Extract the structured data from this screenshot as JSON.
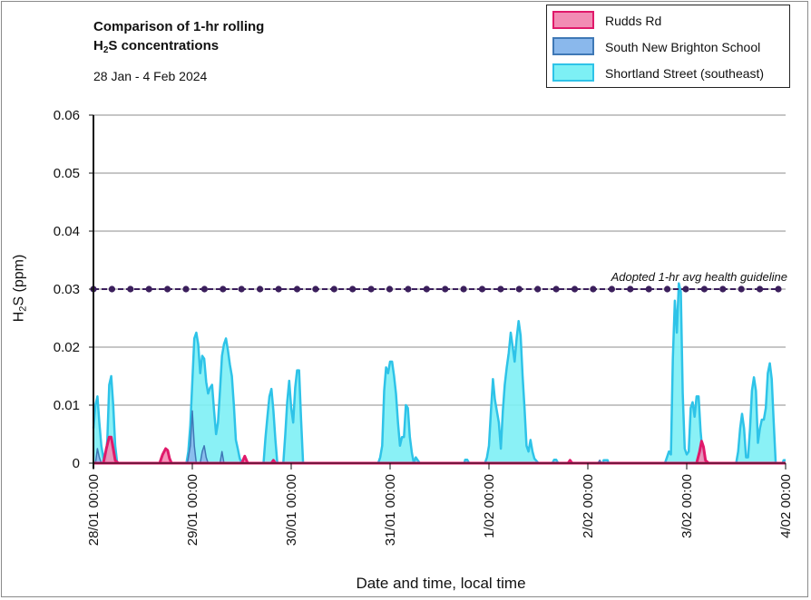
{
  "chart_data": {
    "type": "area",
    "title_line1": "Comparison of 1-hr rolling",
    "title_line2_prefix": "H",
    "title_line2_sub": "2",
    "title_line2_suffix": "S concentrations",
    "subtitle": "28 Jan - 4 Feb 2024",
    "ylabel_prefix": "H",
    "ylabel_sub": "2",
    "ylabel_suffix": "S (ppm)",
    "xlabel": "Date and time, local time",
    "ylim": [
      0,
      0.06
    ],
    "xlim_days": [
      0,
      7
    ],
    "yticks": [
      "0",
      "0.01",
      "0.02",
      "0.03",
      "0.04",
      "0.05",
      "0.06"
    ],
    "xticks": [
      "28/01 00:00",
      "29/01 00:00",
      "30/01 00:00",
      "31/01 00:00",
      "1/02 00:00",
      "2/02 00:00",
      "3/02 00:00",
      "4/02 00:00"
    ],
    "grid": "horizontal",
    "legend_placement": "top-right",
    "guideline": {
      "value": 0.03,
      "label": "Adopted 1-hr avg health guideline",
      "color": "#3b1f5c"
    },
    "series": [
      {
        "name": "Shortland Street (southeast)",
        "fill": "#7df0f5",
        "stroke": "#2ec3e8",
        "points": [
          [
            0.0,
            0.006
          ],
          [
            0.02,
            0.01
          ],
          [
            0.04,
            0.0115
          ],
          [
            0.06,
            0.007
          ],
          [
            0.08,
            0.003
          ],
          [
            0.1,
            0.001
          ],
          [
            0.12,
            0
          ],
          [
            0.14,
            0.004
          ],
          [
            0.16,
            0.0135
          ],
          [
            0.18,
            0.015
          ],
          [
            0.2,
            0.01
          ],
          [
            0.22,
            0.003
          ],
          [
            0.24,
            0
          ],
          [
            0.94,
            0
          ],
          [
            0.96,
            0.002
          ],
          [
            0.98,
            0.0065
          ],
          [
            1.0,
            0.014
          ],
          [
            1.02,
            0.0215
          ],
          [
            1.04,
            0.0225
          ],
          [
            1.06,
            0.0205
          ],
          [
            1.08,
            0.0155
          ],
          [
            1.1,
            0.0185
          ],
          [
            1.12,
            0.018
          ],
          [
            1.14,
            0.014
          ],
          [
            1.16,
            0.012
          ],
          [
            1.18,
            0.013
          ],
          [
            1.2,
            0.0135
          ],
          [
            1.22,
            0.009
          ],
          [
            1.24,
            0.005
          ],
          [
            1.26,
            0.007
          ],
          [
            1.28,
            0.0125
          ],
          [
            1.3,
            0.0185
          ],
          [
            1.32,
            0.0205
          ],
          [
            1.34,
            0.0215
          ],
          [
            1.36,
            0.0195
          ],
          [
            1.38,
            0.017
          ],
          [
            1.4,
            0.015
          ],
          [
            1.42,
            0.01
          ],
          [
            1.44,
            0.004
          ],
          [
            1.46,
            0.0025
          ],
          [
            1.48,
            0.0008
          ],
          [
            1.5,
            0
          ],
          [
            1.72,
            0
          ],
          [
            1.74,
            0.0045
          ],
          [
            1.76,
            0.008
          ],
          [
            1.78,
            0.0115
          ],
          [
            1.8,
            0.0128
          ],
          [
            1.82,
            0.009
          ],
          [
            1.84,
            0.004
          ],
          [
            1.86,
            0
          ],
          [
            1.92,
            0
          ],
          [
            1.94,
            0.005
          ],
          [
            1.96,
            0.0105
          ],
          [
            1.98,
            0.0142
          ],
          [
            2.0,
            0.0095
          ],
          [
            2.02,
            0.007
          ],
          [
            2.04,
            0.013
          ],
          [
            2.06,
            0.016
          ],
          [
            2.08,
            0.016
          ],
          [
            2.1,
            0.0075
          ],
          [
            2.12,
            0
          ],
          [
            2.88,
            0
          ],
          [
            2.9,
            0.001
          ],
          [
            2.92,
            0.003
          ],
          [
            2.94,
            0.0125
          ],
          [
            2.96,
            0.0165
          ],
          [
            2.98,
            0.0155
          ],
          [
            3.0,
            0.0175
          ],
          [
            3.02,
            0.0175
          ],
          [
            3.04,
            0.015
          ],
          [
            3.06,
            0.012
          ],
          [
            3.08,
            0.007
          ],
          [
            3.1,
            0.003
          ],
          [
            3.12,
            0.0045
          ],
          [
            3.14,
            0.0045
          ],
          [
            3.16,
            0.01
          ],
          [
            3.18,
            0.0095
          ],
          [
            3.2,
            0.0045
          ],
          [
            3.22,
            0.0018
          ],
          [
            3.24,
            0
          ],
          [
            3.26,
            0.001
          ],
          [
            3.28,
            0.0005
          ],
          [
            3.3,
            0
          ],
          [
            3.75,
            0
          ],
          [
            3.76,
            0.0006
          ],
          [
            3.78,
            0.0006
          ],
          [
            3.8,
            0
          ],
          [
            3.96,
            0
          ],
          [
            3.98,
            0.001
          ],
          [
            4.0,
            0.003
          ],
          [
            4.02,
            0.009
          ],
          [
            4.04,
            0.0145
          ],
          [
            4.06,
            0.011
          ],
          [
            4.08,
            0.009
          ],
          [
            4.1,
            0.007
          ],
          [
            4.12,
            0.0025
          ],
          [
            4.14,
            0.009
          ],
          [
            4.16,
            0.0135
          ],
          [
            4.18,
            0.0165
          ],
          [
            4.2,
            0.019
          ],
          [
            4.22,
            0.0225
          ],
          [
            4.24,
            0.02
          ],
          [
            4.26,
            0.0175
          ],
          [
            4.28,
            0.0215
          ],
          [
            4.3,
            0.0245
          ],
          [
            4.32,
            0.022
          ],
          [
            4.34,
            0.015
          ],
          [
            4.36,
            0.0095
          ],
          [
            4.38,
            0.003
          ],
          [
            4.4,
            0.002
          ],
          [
            4.42,
            0.004
          ],
          [
            4.44,
            0.002
          ],
          [
            4.46,
            0.0008
          ],
          [
            4.5,
            0
          ],
          [
            4.64,
            0
          ],
          [
            4.66,
            0.0006
          ],
          [
            4.68,
            0.0006
          ],
          [
            4.7,
            0
          ],
          [
            5.15,
            0
          ],
          [
            5.16,
            0.0005
          ],
          [
            5.2,
            0.0005
          ],
          [
            5.21,
            0
          ],
          [
            5.78,
            0
          ],
          [
            5.8,
            0.001
          ],
          [
            5.82,
            0.002
          ],
          [
            5.84,
            0.0015
          ],
          [
            5.86,
            0.018
          ],
          [
            5.88,
            0.028
          ],
          [
            5.9,
            0.0225
          ],
          [
            5.92,
            0.031
          ],
          [
            5.94,
            0.0295
          ],
          [
            5.96,
            0.012
          ],
          [
            5.98,
            0.0025
          ],
          [
            6.0,
            0.0015
          ],
          [
            6.02,
            0.002
          ],
          [
            6.04,
            0.0095
          ],
          [
            6.06,
            0.0105
          ],
          [
            6.08,
            0.008
          ],
          [
            6.1,
            0.0115
          ],
          [
            6.12,
            0.0115
          ],
          [
            6.14,
            0.0055
          ],
          [
            6.16,
            0.0018
          ],
          [
            6.18,
            0.0005
          ],
          [
            6.2,
            0
          ],
          [
            6.5,
            0
          ],
          [
            6.52,
            0.002
          ],
          [
            6.54,
            0.006
          ],
          [
            6.56,
            0.0085
          ],
          [
            6.58,
            0.006
          ],
          [
            6.6,
            0.001
          ],
          [
            6.62,
            0.001
          ],
          [
            6.64,
            0.006
          ],
          [
            6.66,
            0.0125
          ],
          [
            6.68,
            0.0148
          ],
          [
            6.7,
            0.0125
          ],
          [
            6.72,
            0.0035
          ],
          [
            6.74,
            0.006
          ],
          [
            6.76,
            0.0075
          ],
          [
            6.78,
            0.0075
          ],
          [
            6.8,
            0.0095
          ],
          [
            6.82,
            0.0155
          ],
          [
            6.84,
            0.0172
          ],
          [
            6.86,
            0.0145
          ],
          [
            6.88,
            0.007
          ],
          [
            6.9,
            0
          ],
          [
            6.97,
            0
          ],
          [
            6.98,
            0.0005
          ],
          [
            7.0,
            0.0005
          ]
        ]
      },
      {
        "name": "South New Brighton School",
        "fill": "#8ab8ec",
        "stroke": "#3f78b6",
        "points": [
          [
            0.02,
            0
          ],
          [
            0.04,
            0.0025
          ],
          [
            0.06,
            0.001
          ],
          [
            0.08,
            0
          ],
          [
            0.95,
            0
          ],
          [
            0.98,
            0.003
          ],
          [
            1.0,
            0.009
          ],
          [
            1.02,
            0.003
          ],
          [
            1.04,
            0
          ],
          [
            1.08,
            0
          ],
          [
            1.1,
            0.002
          ],
          [
            1.12,
            0.003
          ],
          [
            1.14,
            0.001
          ],
          [
            1.16,
            0
          ],
          [
            1.28,
            0
          ],
          [
            1.3,
            0.002
          ],
          [
            1.32,
            0
          ],
          [
            5.1,
            0
          ],
          [
            5.12,
            0.0005
          ],
          [
            5.14,
            0
          ]
        ]
      },
      {
        "name": "Rudds Rd",
        "fill": "#f28cb4",
        "stroke": "#e0196a",
        "points": [
          [
            0.1,
            0
          ],
          [
            0.13,
            0.0025
          ],
          [
            0.16,
            0.0045
          ],
          [
            0.18,
            0.0045
          ],
          [
            0.2,
            0.0025
          ],
          [
            0.22,
            0.0005
          ],
          [
            0.25,
            0
          ],
          [
            0.67,
            0
          ],
          [
            0.7,
            0.0015
          ],
          [
            0.73,
            0.0025
          ],
          [
            0.75,
            0.0022
          ],
          [
            0.77,
            0.0008
          ],
          [
            0.79,
            0
          ],
          [
            1.5,
            0
          ],
          [
            1.53,
            0.0012
          ],
          [
            1.56,
            0
          ],
          [
            1.8,
            0
          ],
          [
            1.82,
            0.0005
          ],
          [
            1.84,
            0
          ],
          [
            4.8,
            0
          ],
          [
            4.82,
            0.0005
          ],
          [
            4.84,
            0
          ],
          [
            6.1,
            0
          ],
          [
            6.13,
            0.002
          ],
          [
            6.15,
            0.0038
          ],
          [
            6.17,
            0.0028
          ],
          [
            6.19,
            0.0005
          ],
          [
            6.22,
            0
          ]
        ]
      }
    ]
  }
}
